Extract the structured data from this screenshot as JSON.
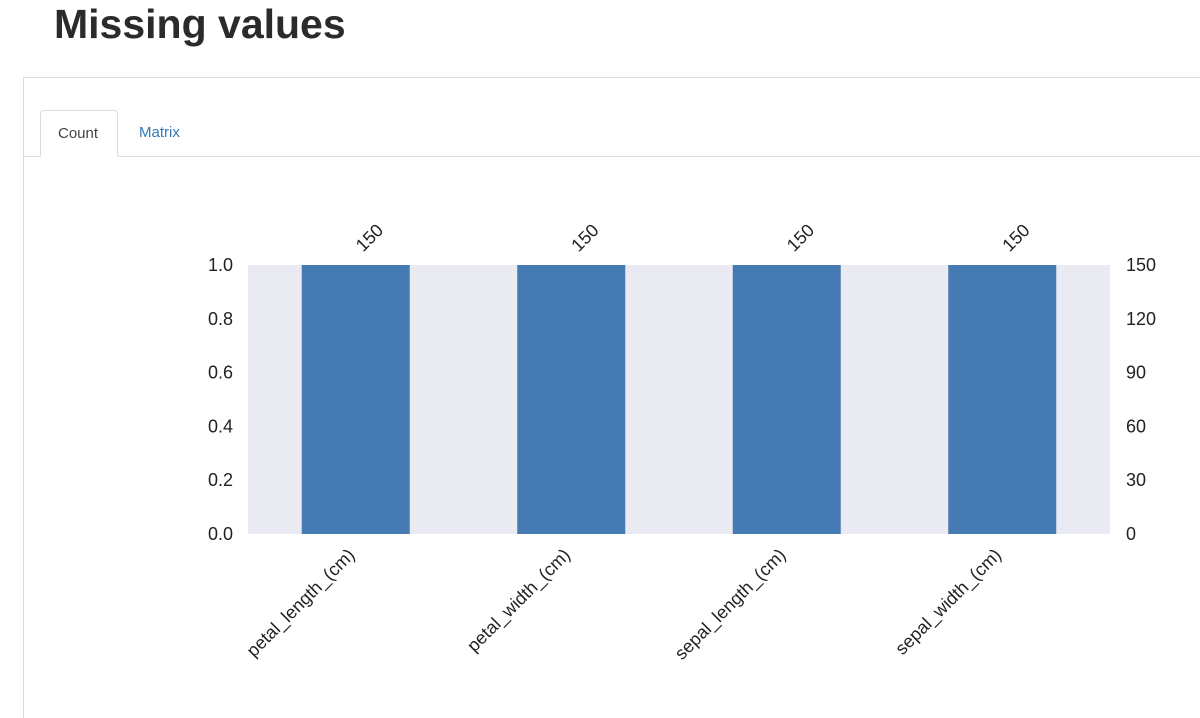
{
  "page": {
    "title": "Missing values"
  },
  "tabs": [
    {
      "label": "Count",
      "active": true
    },
    {
      "label": "Matrix",
      "active": false
    }
  ],
  "colors": {
    "bar": "#467ab3",
    "plot_background": "#eaeaf2",
    "active_tab_text": "#444444",
    "link_tab_text": "#337ab7"
  },
  "chart_data": {
    "type": "bar",
    "categories": [
      "petal_length_(cm)",
      "petal_width_(cm)",
      "sepal_length_(cm)",
      "sepal_width_(cm)"
    ],
    "values": [
      1.0,
      1.0,
      1.0,
      1.0
    ],
    "counts": [
      150,
      150,
      150,
      150
    ],
    "ylim": [
      0,
      1.0
    ],
    "yticks": [
      "0.0",
      "0.2",
      "0.4",
      "0.6",
      "0.8",
      "1.0"
    ],
    "y2lim": [
      0,
      150
    ],
    "y2ticks": [
      "0",
      "30",
      "60",
      "90",
      "120",
      "150"
    ],
    "count_labels": [
      "150",
      "150",
      "150",
      "150"
    ],
    "grid": false
  }
}
